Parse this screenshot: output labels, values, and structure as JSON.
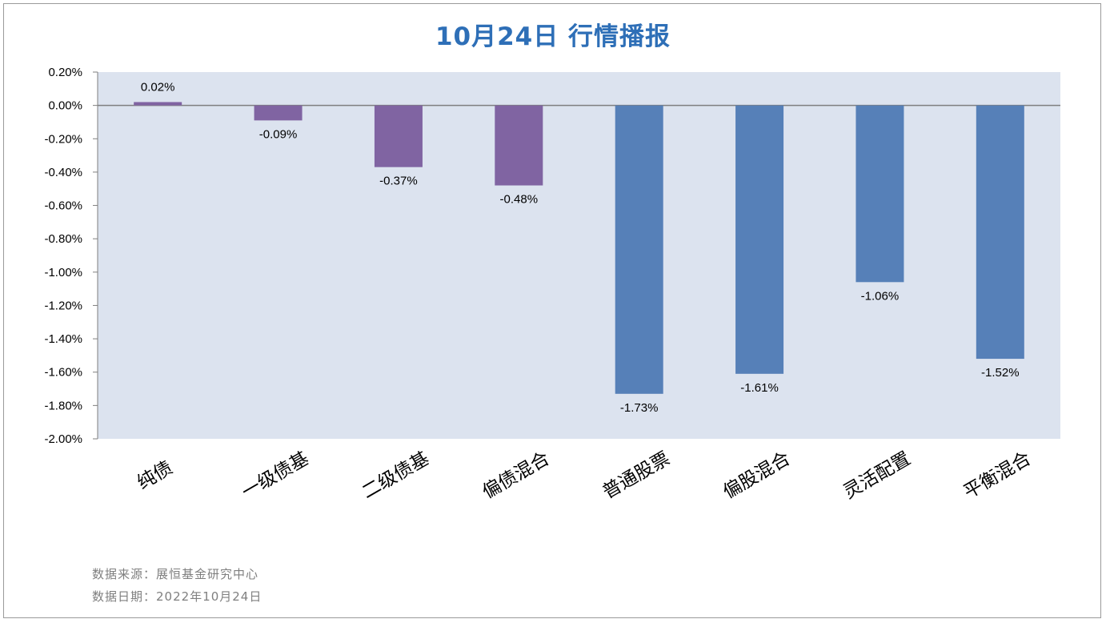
{
  "title": "10月24日  行情播报",
  "chart_data": {
    "type": "bar",
    "categories": [
      "纯债",
      "一级债基",
      "二级债基",
      "偏债混合",
      "普通股票",
      "偏股混合",
      "灵活配置",
      "平衡混合"
    ],
    "values": [
      0.02,
      -0.09,
      -0.37,
      -0.48,
      -1.73,
      -1.61,
      -1.06,
      -1.52
    ],
    "value_labels": [
      "0.02%",
      "-0.09%",
      "-0.37%",
      "-0.48%",
      "-1.73%",
      "-1.61%",
      "-1.06%",
      "-1.52%"
    ],
    "y_ticks": [
      "0.20%",
      "0.00%",
      "-0.20%",
      "-0.40%",
      "-0.60%",
      "-0.80%",
      "-1.00%",
      "-1.20%",
      "-1.40%",
      "-1.60%",
      "-1.80%",
      "-2.00%"
    ],
    "ylim": [
      -2.0,
      0.2
    ],
    "y_unit": "%",
    "bar_colors": [
      "#8064a2",
      "#8064a2",
      "#8064a2",
      "#8064a2",
      "#5680b8",
      "#5680b8",
      "#5680b8",
      "#5680b8"
    ],
    "plot_background": "#dce3ef",
    "grid": false,
    "title": "10月24日  行情播报"
  },
  "footer": {
    "source": "数据来源：展恒基金研究中心",
    "date": "数据日期：2022年10月24日"
  }
}
